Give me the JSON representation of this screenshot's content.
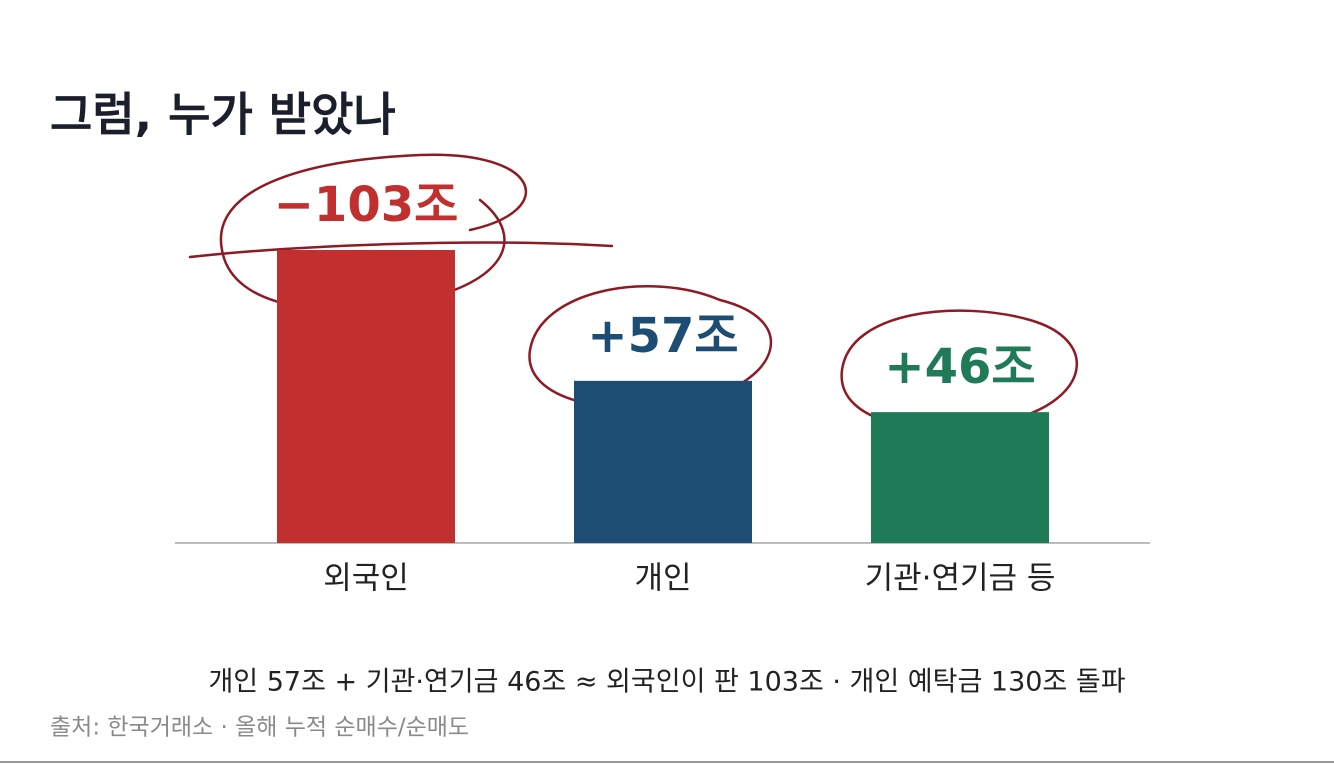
{
  "chart_data": {
    "type": "bar",
    "title": "그럼, 누가 받았나",
    "categories": [
      "외국인",
      "개인",
      "기관·연기금 등"
    ],
    "values": [
      -103,
      57,
      46
    ],
    "value_labels": [
      "−103조",
      "+57조",
      "+46조"
    ],
    "colors": [
      "#c22f2f",
      "#1d4d72",
      "#1f7a57"
    ],
    "note": "개인 57조 + 기관·연기금 46조 ≈ 외국인이 판 103조  ·  개인 예탁금 130조 돌파",
    "source": "출처: 한국거래소 · 올해 누적 순매수/순매도"
  }
}
